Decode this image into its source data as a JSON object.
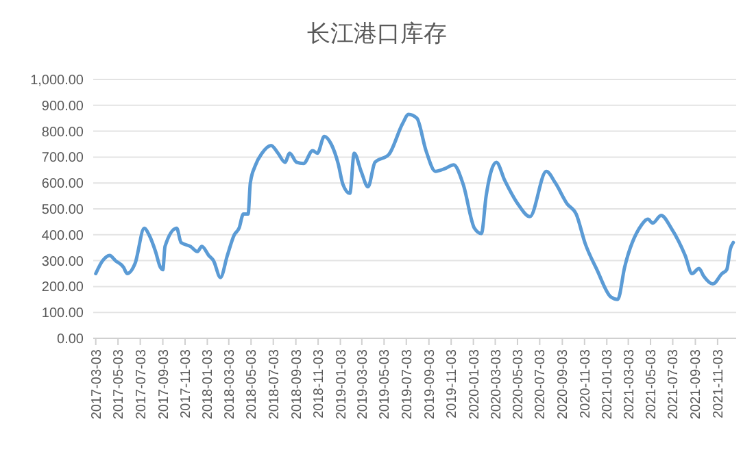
{
  "chart_data": {
    "type": "line",
    "title": "长江港口库存",
    "grid": "y",
    "marker": "none",
    "line_style": "solid",
    "xlim": [
      "2017-02-24",
      "2021-12-24"
    ],
    "xticks": [
      {
        "value": "2017-03-03",
        "label": "2017-03-03"
      },
      {
        "value": "2017-05-03",
        "label": "2017-05-03"
      },
      {
        "value": "2017-07-03",
        "label": "2017-07-03"
      },
      {
        "value": "2017-09-03",
        "label": "2017-09-03"
      },
      {
        "value": "2017-11-03",
        "label": "2017-11-03"
      },
      {
        "value": "2018-01-03",
        "label": "2018-01-03"
      },
      {
        "value": "2018-03-03",
        "label": "2018-03-03"
      },
      {
        "value": "2018-05-03",
        "label": "2018-05-03"
      },
      {
        "value": "2018-07-03",
        "label": "2018-07-03"
      },
      {
        "value": "2018-09-03",
        "label": "2018-09-03"
      },
      {
        "value": "2018-11-03",
        "label": "2018-11-03"
      },
      {
        "value": "2019-01-03",
        "label": "2019-01-03"
      },
      {
        "value": "2019-03-03",
        "label": "2019-03-03"
      },
      {
        "value": "2019-05-03",
        "label": "2019-05-03"
      },
      {
        "value": "2019-07-03",
        "label": "2019-07-03"
      },
      {
        "value": "2019-09-03",
        "label": "2019-09-03"
      },
      {
        "value": "2019-11-03",
        "label": "2019-11-03"
      },
      {
        "value": "2020-01-03",
        "label": "2020-01-03"
      },
      {
        "value": "2020-03-03",
        "label": "2020-03-03"
      },
      {
        "value": "2020-05-03",
        "label": "2020-05-03"
      },
      {
        "value": "2020-07-03",
        "label": "2020-07-03"
      },
      {
        "value": "2020-09-03",
        "label": "2020-09-03"
      },
      {
        "value": "2020-11-03",
        "label": "2020-11-03"
      },
      {
        "value": "2021-01-03",
        "label": "2021-01-03"
      },
      {
        "value": "2021-03-03",
        "label": "2021-03-03"
      },
      {
        "value": "2021-05-03",
        "label": "2021-05-03"
      },
      {
        "value": "2021-07-03",
        "label": "2021-07-03"
      },
      {
        "value": "2021-09-03",
        "label": "2021-09-03"
      },
      {
        "value": "2021-11-03",
        "label": "2021-11-03"
      }
    ],
    "ylim": [
      0,
      1000
    ],
    "yticks": [
      {
        "value": 0,
        "label": "0.00"
      },
      {
        "value": 100,
        "label": "100.00"
      },
      {
        "value": 200,
        "label": "200.00"
      },
      {
        "value": 300,
        "label": "300.00"
      },
      {
        "value": 400,
        "label": "400.00"
      },
      {
        "value": 500,
        "label": "500.00"
      },
      {
        "value": 600,
        "label": "600.00"
      },
      {
        "value": 700,
        "label": "700.00"
      },
      {
        "value": 800,
        "label": "800.00"
      },
      {
        "value": 900,
        "label": "900.00"
      },
      {
        "value": 1000,
        "label": "1,000.00"
      }
    ],
    "x": [
      "2017-03-03",
      "2017-03-22",
      "2017-04-10",
      "2017-04-26",
      "2017-05-18",
      "2017-05-28",
      "2017-06-19",
      "2017-07-14",
      "2017-07-27",
      "2017-08-14",
      "2017-08-27",
      "2017-09-03",
      "2017-09-09",
      "2017-10-11",
      "2017-10-23",
      "2017-11-18",
      "2017-12-07",
      "2017-12-19",
      "2018-01-07",
      "2018-01-20",
      "2018-02-08",
      "2018-02-27",
      "2018-03-18",
      "2018-03-31",
      "2018-04-12",
      "2018-04-25",
      "2018-05-01",
      "2018-05-14",
      "2018-06-02",
      "2018-06-27",
      "2018-07-16",
      "2018-08-04",
      "2018-08-17",
      "2018-09-05",
      "2018-09-24",
      "2018-10-19",
      "2018-11-01",
      "2018-11-20",
      "2018-12-09",
      "2018-12-28",
      "2019-01-10",
      "2019-01-29",
      "2019-02-10",
      "2019-03-01",
      "2019-03-20",
      "2019-04-08",
      "2019-05-16",
      "2019-06-23",
      "2019-07-09",
      "2019-08-01",
      "2019-08-26",
      "2019-09-21",
      "2019-10-16",
      "2019-11-10",
      "2019-12-06",
      "2020-01-06",
      "2020-01-25",
      "2020-02-07",
      "2020-03-06",
      "2020-03-29",
      "2020-05-06",
      "2020-06-06",
      "2020-07-21",
      "2020-08-15",
      "2020-09-16",
      "2020-10-11",
      "2020-11-05",
      "2020-12-07",
      "2021-01-14",
      "2021-02-02",
      "2021-02-21",
      "2021-04-07",
      "2021-04-26",
      "2021-05-09",
      "2021-06-01",
      "2021-06-29",
      "2021-08-06",
      "2021-08-25",
      "2021-09-13",
      "2021-09-26",
      "2021-10-21",
      "2021-11-15",
      "2021-11-28",
      "2021-12-08",
      "2021-12-16"
    ],
    "series": [
      {
        "color": "#5b9bd5",
        "values": [
          250,
          300,
          320,
          300,
          275,
          250,
          290,
          425,
          400,
          335,
          275,
          265,
          355,
          425,
          370,
          355,
          335,
          355,
          320,
          300,
          235,
          320,
          400,
          425,
          480,
          480,
          600,
          665,
          715,
          745,
          715,
          680,
          715,
          680,
          675,
          725,
          715,
          780,
          750,
          675,
          595,
          560,
          715,
          645,
          585,
          680,
          710,
          830,
          865,
          850,
          725,
          645,
          655,
          670,
          595,
          425,
          405,
          550,
          680,
          610,
          515,
          470,
          645,
          600,
          520,
          480,
          365,
          265,
          160,
          150,
          275,
          435,
          460,
          445,
          475,
          425,
          320,
          250,
          270,
          240,
          210,
          250,
          265,
          345,
          370
        ]
      }
    ]
  }
}
